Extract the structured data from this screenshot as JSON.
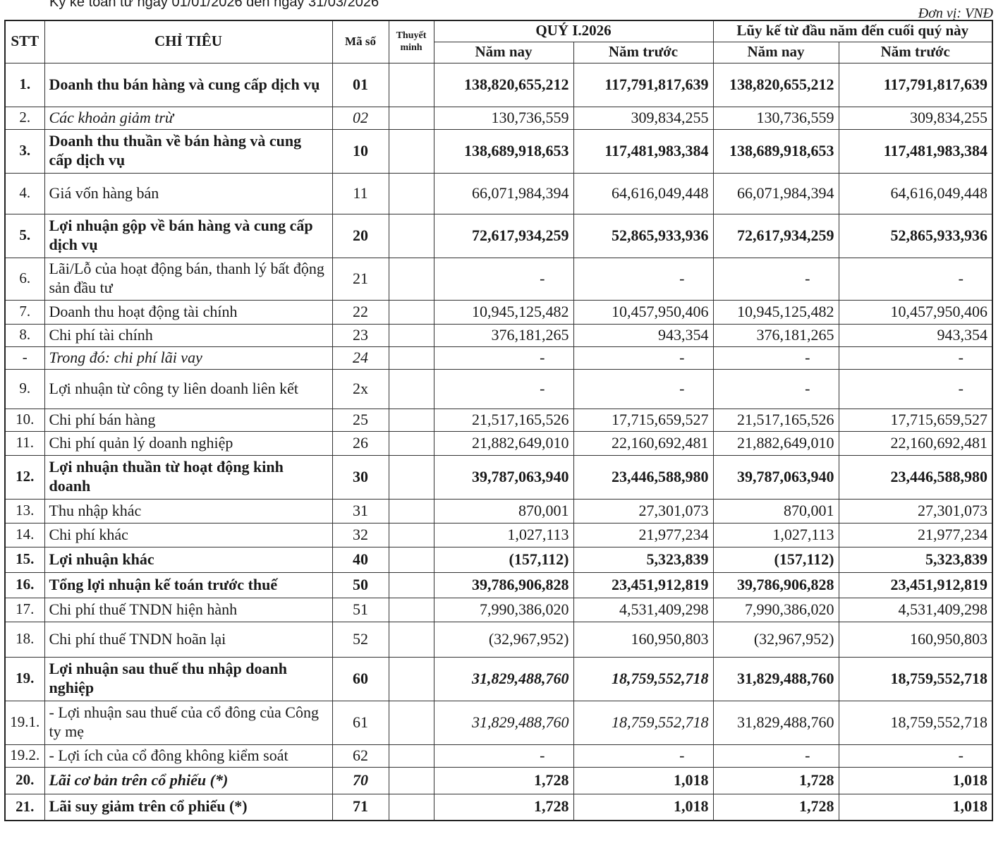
{
  "header": {
    "period": "Kỳ kế toán từ ngày 01/01/2026 đến ngày 31/03/2026",
    "unit": "Đơn vị: VNĐ"
  },
  "table": {
    "columns": {
      "stt": "STT",
      "item": "CHỈ TIÊU",
      "code": "Mã số",
      "note": "Thuyết minh",
      "quarter": "QUÝ I.2026",
      "ytd": "Lũy kế từ đầu năm đến cuối quý này",
      "this_year": "Năm nay",
      "last_year": "Năm trước"
    },
    "rows": [
      [
        "1.",
        "Doanh thu bán hàng và cung cấp dịch vụ",
        "01",
        "138,820,655,212",
        "117,791,817,639",
        "138,820,655,212",
        "117,791,817,639"
      ],
      [
        "2.",
        "Các khoản giảm trừ",
        "02",
        "130,736,559",
        "309,834,255",
        "130,736,559",
        "309,834,255"
      ],
      [
        "3.",
        "Doanh thu thuần về bán hàng và cung cấp dịch vụ",
        "10",
        "138,689,918,653",
        "117,481,983,384",
        "138,689,918,653",
        "117,481,983,384"
      ],
      [
        "4.",
        "Giá vốn hàng bán",
        "11",
        "66,071,984,394",
        "64,616,049,448",
        "66,071,984,394",
        "64,616,049,448"
      ],
      [
        "5.",
        "Lợi nhuận gộp về bán hàng và cung cấp dịch vụ",
        "20",
        "72,617,934,259",
        "52,865,933,936",
        "72,617,934,259",
        "52,865,933,936"
      ],
      [
        "6.",
        "Lãi/Lỗ của hoạt động bán, thanh lý bất động sản đầu tư",
        "21",
        "-",
        "-",
        "-",
        "-"
      ],
      [
        "7.",
        "Doanh thu hoạt động tài chính",
        "22",
        "10,945,125,482",
        "10,457,950,406",
        "10,945,125,482",
        "10,457,950,406"
      ],
      [
        "8.",
        "Chi phí tài chính",
        "23",
        "376,181,265",
        "943,354",
        "376,181,265",
        "943,354"
      ],
      [
        "-",
        "Trong đó: chi phí lãi vay",
        "24",
        "-",
        "-",
        "-",
        "-"
      ],
      [
        "9.",
        "Lợi nhuận từ công ty liên doanh liên kết",
        "2x",
        "-",
        "-",
        "-",
        "-"
      ],
      [
        "10.",
        "Chi phí bán hàng",
        "25",
        "21,517,165,526",
        "17,715,659,527",
        "21,517,165,526",
        "17,715,659,527"
      ],
      [
        "11.",
        "Chi phí quản lý doanh nghiệp",
        "26",
        "21,882,649,010",
        "22,160,692,481",
        "21,882,649,010",
        "22,160,692,481"
      ],
      [
        "12.",
        "Lợi nhuận thuần từ hoạt động kinh doanh",
        "30",
        "39,787,063,940",
        "23,446,588,980",
        "39,787,063,940",
        "23,446,588,980"
      ],
      [
        "13.",
        "Thu nhập khác",
        "31",
        "870,001",
        "27,301,073",
        "870,001",
        "27,301,073"
      ],
      [
        "14.",
        "Chi phí khác",
        "32",
        "1,027,113",
        "21,977,234",
        "1,027,113",
        "21,977,234"
      ],
      [
        "15.",
        "Lợi nhuận khác",
        "40",
        "(157,112)",
        "5,323,839",
        "(157,112)",
        "5,323,839"
      ],
      [
        "16.",
        "Tổng lợi nhuận kế toán trước thuế",
        "50",
        "39,786,906,828",
        "23,451,912,819",
        "39,786,906,828",
        "23,451,912,819"
      ],
      [
        "17.",
        "Chi phí thuế TNDN hiện hành",
        "51",
        "7,990,386,020",
        "4,531,409,298",
        "7,990,386,020",
        "4,531,409,298"
      ],
      [
        "18.",
        "Chi phí thuế TNDN hoãn lại",
        "52",
        "(32,967,952)",
        "160,950,803",
        "(32,967,952)",
        "160,950,803"
      ],
      [
        "19.",
        "Lợi nhuận sau thuế thu nhập doanh nghiệp",
        "60",
        "31,829,488,760",
        "18,759,552,718",
        "31,829,488,760",
        "18,759,552,718"
      ],
      [
        "19.1.",
        "- Lợi nhuận sau thuế của cổ đông của Công ty mẹ",
        "61",
        "31,829,488,760",
        "18,759,552,718",
        "31,829,488,760",
        "18,759,552,718"
      ],
      [
        "19.2.",
        "- Lợi ích của cổ đông không kiểm soát",
        "62",
        "-",
        "-",
        "-",
        "-"
      ],
      [
        "20.",
        "Lãi cơ bản trên cổ phiếu (*)",
        "70",
        "1,728",
        "1,018",
        "1,728",
        "1,018"
      ],
      [
        "21.",
        "Lãi suy giảm trên cổ phiếu (*)",
        "71",
        "1,728",
        "1,018",
        "1,728",
        "1,018"
      ]
    ]
  }
}
